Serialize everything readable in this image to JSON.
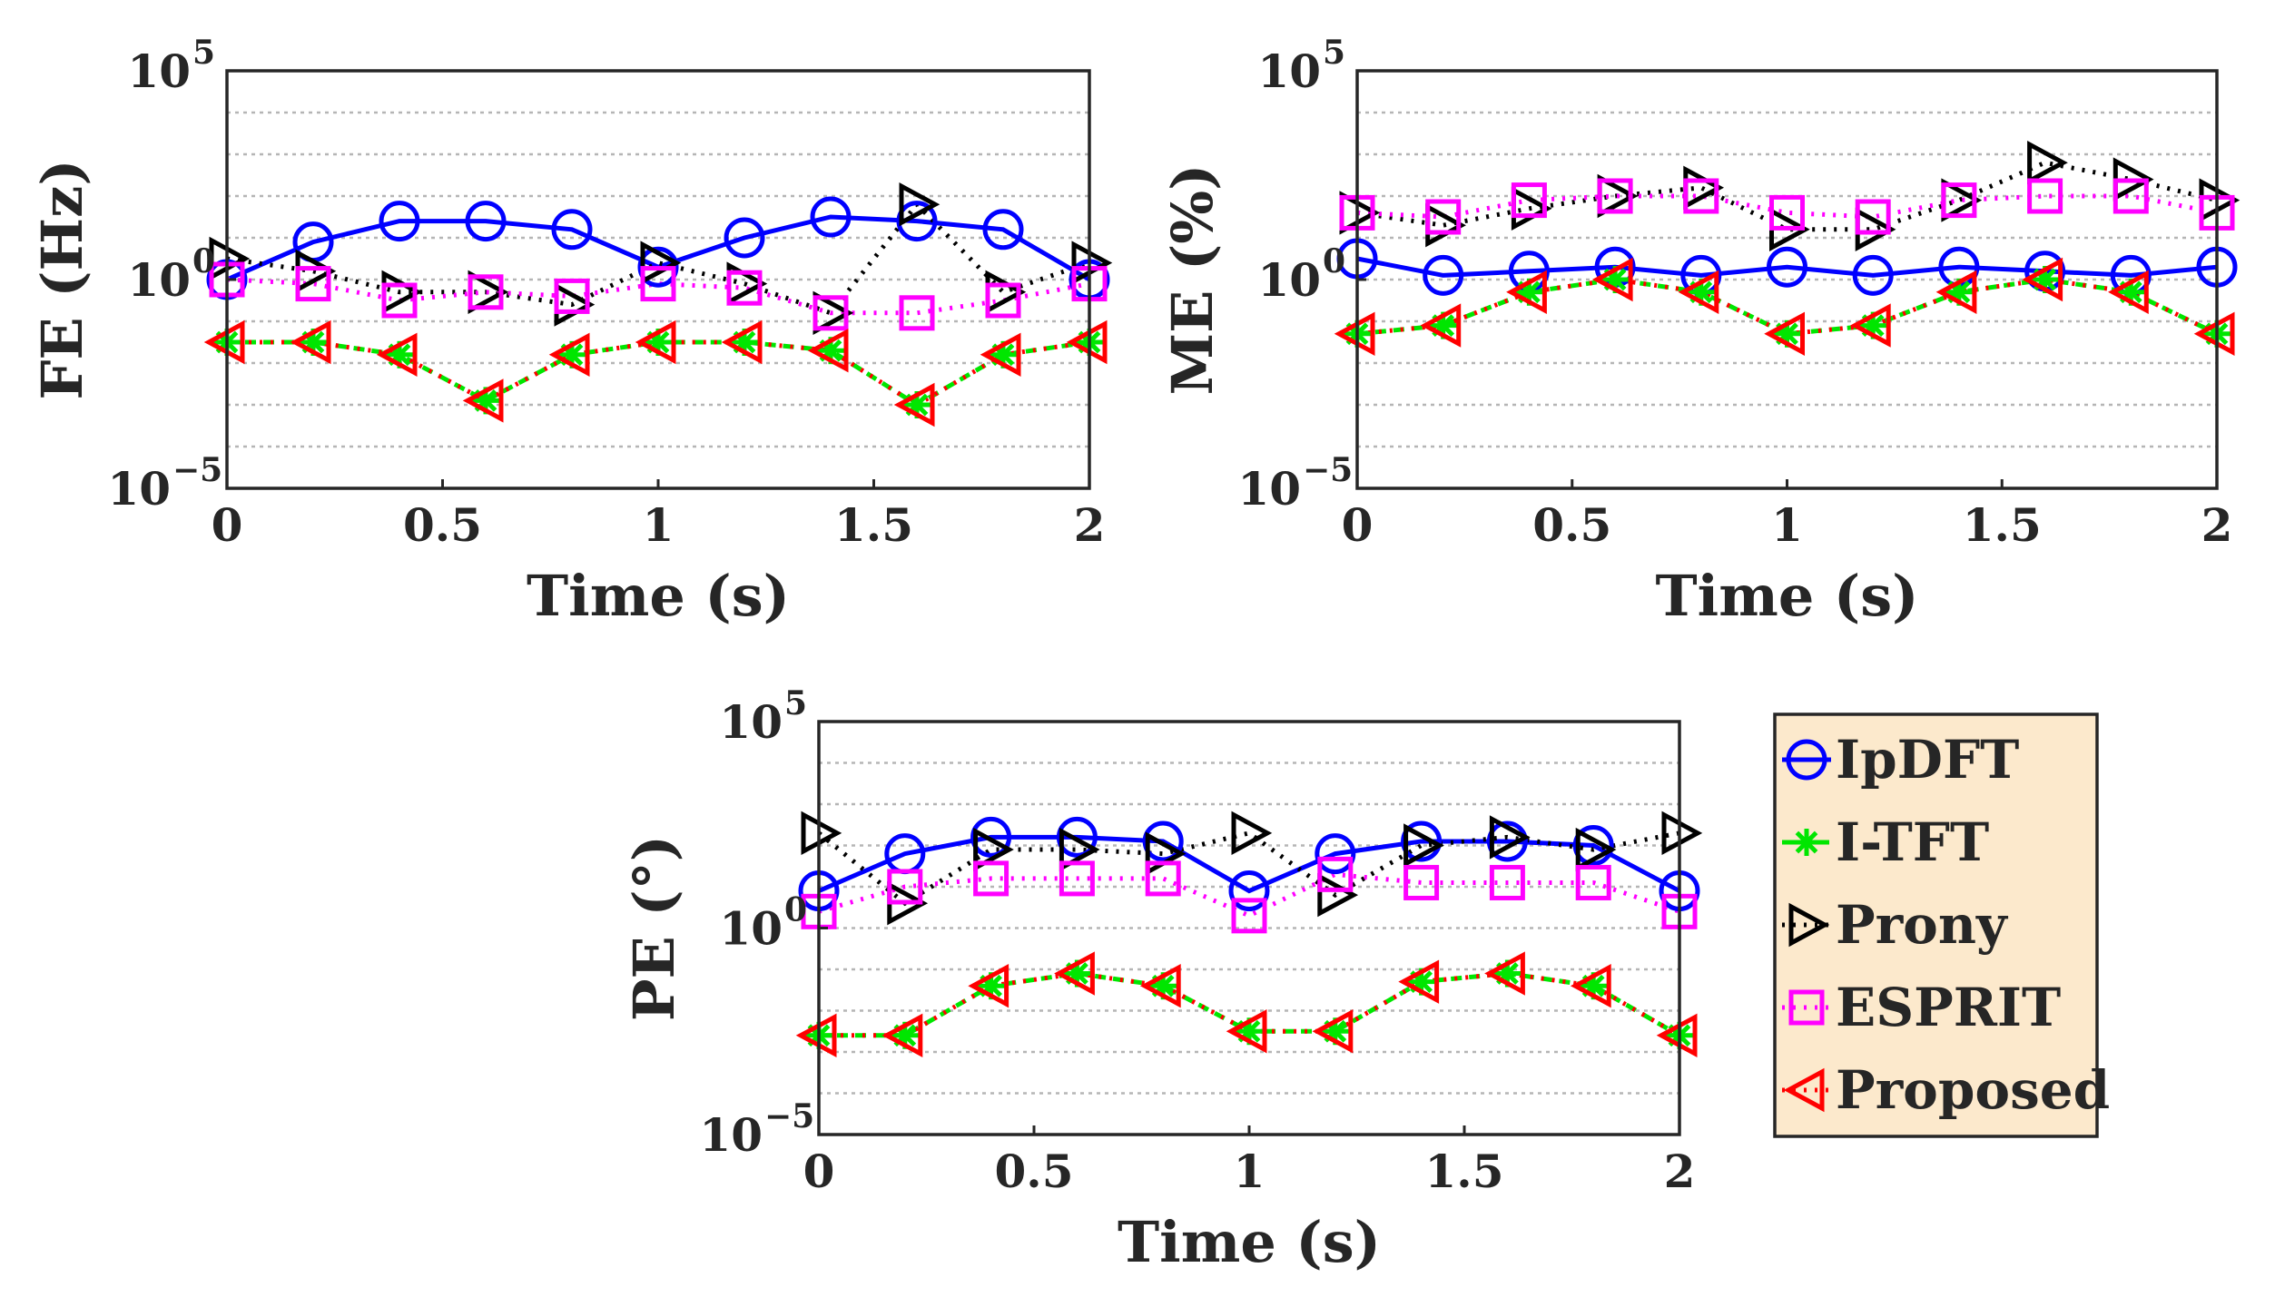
{
  "chart_data": [
    {
      "type": "line",
      "yscale": "log",
      "xlabel": "Time (s)",
      "ylabel": "FE (Hz)",
      "xlim": [
        0,
        2
      ],
      "ylim_exponents": [
        -5,
        5
      ],
      "xticks": [
        "0",
        "0.5",
        "1",
        "1.5",
        "2"
      ],
      "yticks": [
        {
          "base": "10",
          "exp": "−5",
          "value": -5
        },
        {
          "base": "10",
          "exp": "0",
          "value": 0
        },
        {
          "base": "10",
          "exp": "5",
          "value": 5
        }
      ],
      "x": [
        0,
        0.2,
        0.4,
        0.6,
        0.8,
        1.0,
        1.2,
        1.4,
        1.6,
        1.8,
        2.0
      ],
      "series": [
        {
          "name": "IpDFT",
          "log10_values": [
            0.0,
            0.9,
            1.4,
            1.4,
            1.2,
            0.3,
            1.0,
            1.5,
            1.4,
            1.2,
            0.0
          ]
        },
        {
          "name": "I-TFT",
          "log10_values": [
            -1.5,
            -1.5,
            -1.8,
            -2.9,
            -1.8,
            -1.5,
            -1.5,
            -1.7,
            -3.0,
            -1.8,
            -1.5
          ]
        },
        {
          "name": "Prony",
          "log10_values": [
            0.5,
            0.2,
            -0.3,
            -0.3,
            -0.6,
            0.4,
            -0.1,
            -0.8,
            1.8,
            -0.3,
            0.4
          ]
        },
        {
          "name": "ESPRIT",
          "log10_values": [
            0.0,
            -0.1,
            -0.5,
            -0.3,
            -0.4,
            -0.1,
            -0.2,
            -0.8,
            -0.8,
            -0.5,
            -0.1
          ]
        },
        {
          "name": "Proposed",
          "log10_values": [
            -1.5,
            -1.5,
            -1.8,
            -2.9,
            -1.8,
            -1.5,
            -1.5,
            -1.7,
            -3.0,
            -1.8,
            -1.5
          ]
        }
      ]
    },
    {
      "type": "line",
      "yscale": "log",
      "xlabel": "Time (s)",
      "ylabel": "ME (%)",
      "xlim": [
        0,
        2
      ],
      "ylim_exponents": [
        -5,
        5
      ],
      "xticks": [
        "0",
        "0.5",
        "1",
        "1.5",
        "2"
      ],
      "yticks": [
        {
          "base": "10",
          "exp": "−5",
          "value": -5
        },
        {
          "base": "10",
          "exp": "0",
          "value": 0
        },
        {
          "base": "10",
          "exp": "5",
          "value": 5
        }
      ],
      "x": [
        0,
        0.2,
        0.4,
        0.6,
        0.8,
        1.0,
        1.2,
        1.4,
        1.6,
        1.8,
        2.0
      ],
      "series": [
        {
          "name": "IpDFT",
          "log10_values": [
            0.5,
            0.1,
            0.2,
            0.3,
            0.1,
            0.3,
            0.1,
            0.3,
            0.2,
            0.1,
            0.3
          ]
        },
        {
          "name": "I-TFT",
          "log10_values": [
            -1.3,
            -1.1,
            -0.3,
            0.0,
            -0.3,
            -1.3,
            -1.1,
            -0.3,
            0.0,
            -0.3,
            -1.3
          ]
        },
        {
          "name": "Prony",
          "log10_values": [
            1.6,
            1.3,
            1.7,
            2.0,
            2.2,
            1.2,
            1.2,
            1.9,
            2.8,
            2.4,
            1.9
          ]
        },
        {
          "name": "ESPRIT",
          "log10_values": [
            1.6,
            1.5,
            1.9,
            2.0,
            2.0,
            1.6,
            1.5,
            1.9,
            2.0,
            2.0,
            1.6
          ]
        },
        {
          "name": "Proposed",
          "log10_values": [
            -1.3,
            -1.1,
            -0.3,
            0.0,
            -0.3,
            -1.3,
            -1.1,
            -0.3,
            0.0,
            -0.3,
            -1.3
          ]
        }
      ]
    },
    {
      "type": "line",
      "yscale": "log",
      "xlabel": "Time (s)",
      "ylabel": "PE (°)",
      "xlim": [
        0,
        2
      ],
      "ylim_exponents": [
        -5,
        5
      ],
      "xticks": [
        "0",
        "0.5",
        "1",
        "1.5",
        "2"
      ],
      "yticks": [
        {
          "base": "10",
          "exp": "−5",
          "value": -5
        },
        {
          "base": "10",
          "exp": "0",
          "value": 0
        },
        {
          "base": "10",
          "exp": "5",
          "value": 5
        }
      ],
      "x": [
        0,
        0.2,
        0.4,
        0.6,
        0.8,
        1.0,
        1.2,
        1.4,
        1.6,
        1.8,
        2.0
      ],
      "series": [
        {
          "name": "IpDFT",
          "log10_values": [
            0.9,
            1.8,
            2.2,
            2.2,
            2.1,
            0.9,
            1.8,
            2.1,
            2.1,
            2.0,
            0.9
          ]
        },
        {
          "name": "I-TFT",
          "log10_values": [
            -2.6,
            -2.6,
            -1.4,
            -1.1,
            -1.4,
            -2.5,
            -2.5,
            -1.3,
            -1.1,
            -1.4,
            -2.6
          ]
        },
        {
          "name": "Prony",
          "log10_values": [
            2.3,
            0.6,
            1.9,
            1.9,
            1.8,
            2.3,
            0.8,
            2.0,
            2.2,
            1.9,
            2.3
          ]
        },
        {
          "name": "ESPRIT",
          "log10_values": [
            0.4,
            1.0,
            1.2,
            1.2,
            1.2,
            0.3,
            1.3,
            1.1,
            1.1,
            1.1,
            0.4
          ]
        },
        {
          "name": "Proposed",
          "log10_values": [
            -2.6,
            -2.6,
            -1.4,
            -1.1,
            -1.4,
            -2.5,
            -2.5,
            -1.3,
            -1.1,
            -1.4,
            -2.6
          ]
        }
      ]
    }
  ],
  "legend": {
    "position": "right of bottom panel",
    "background": "#FCE9CC",
    "items": [
      {
        "name": "IpDFT",
        "color": "#0000FF",
        "marker": "circle",
        "line": "solid"
      },
      {
        "name": "I-TFT",
        "color": "#00E600",
        "marker": "asterisk",
        "line": "dashed"
      },
      {
        "name": "Prony",
        "color": "#000000",
        "marker": "triangle-right",
        "line": "dotted"
      },
      {
        "name": "ESPRIT",
        "color": "#FF00FF",
        "marker": "square",
        "line": "dotted"
      },
      {
        "name": "Proposed",
        "color": "#FF0000",
        "marker": "triangle-left",
        "line": "dotted"
      }
    ]
  }
}
